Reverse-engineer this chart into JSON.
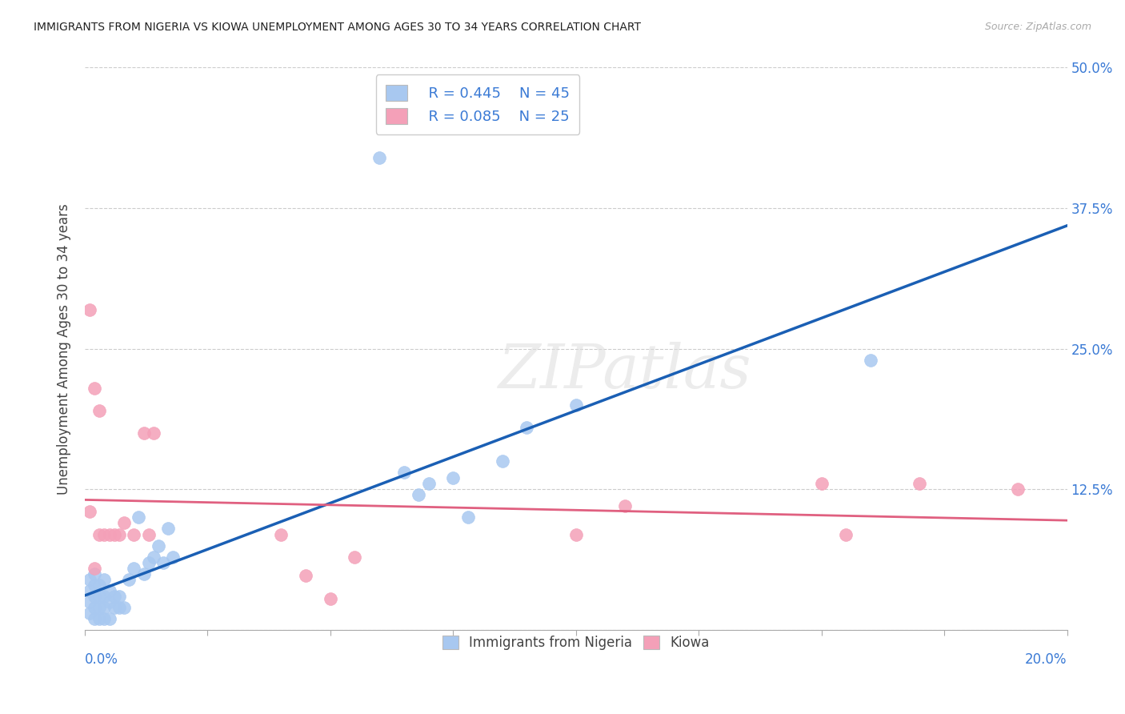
{
  "title": "IMMIGRANTS FROM NIGERIA VS KIOWA UNEMPLOYMENT AMONG AGES 30 TO 34 YEARS CORRELATION CHART",
  "source": "Source: ZipAtlas.com",
  "ylabel": "Unemployment Among Ages 30 to 34 years",
  "xlim": [
    0,
    0.2
  ],
  "ylim": [
    0,
    0.5
  ],
  "yticks": [
    0.0,
    0.125,
    0.25,
    0.375,
    0.5
  ],
  "ytick_labels": [
    "",
    "12.5%",
    "25.0%",
    "37.5%",
    "50.0%"
  ],
  "legend_r1": "R = 0.445",
  "legend_n1": "N = 45",
  "legend_r2": "R = 0.085",
  "legend_n2": "N = 25",
  "series1_label": "Immigrants from Nigeria",
  "series2_label": "Kiowa",
  "color1": "#a8c8f0",
  "color2": "#f4a0b8",
  "line_color1": "#1a5fb4",
  "line_color2": "#e06080",
  "axis_color": "#3a7ad5",
  "nigeria_x": [
    0.001,
    0.001,
    0.001,
    0.001,
    0.002,
    0.002,
    0.002,
    0.002,
    0.002,
    0.003,
    0.003,
    0.003,
    0.003,
    0.004,
    0.004,
    0.004,
    0.004,
    0.005,
    0.005,
    0.005,
    0.006,
    0.006,
    0.007,
    0.007,
    0.008,
    0.009,
    0.01,
    0.011,
    0.012,
    0.013,
    0.014,
    0.015,
    0.016,
    0.017,
    0.018,
    0.06,
    0.065,
    0.068,
    0.07,
    0.075,
    0.078,
    0.085,
    0.09,
    0.1,
    0.16
  ],
  "nigeria_y": [
    0.015,
    0.025,
    0.035,
    0.045,
    0.01,
    0.02,
    0.03,
    0.04,
    0.05,
    0.01,
    0.02,
    0.03,
    0.04,
    0.01,
    0.02,
    0.03,
    0.045,
    0.01,
    0.025,
    0.035,
    0.02,
    0.03,
    0.02,
    0.03,
    0.02,
    0.045,
    0.055,
    0.1,
    0.05,
    0.06,
    0.065,
    0.075,
    0.06,
    0.09,
    0.065,
    0.42,
    0.14,
    0.12,
    0.13,
    0.135,
    0.1,
    0.15,
    0.18,
    0.2,
    0.24
  ],
  "kiowa_x": [
    0.001,
    0.001,
    0.002,
    0.002,
    0.003,
    0.003,
    0.004,
    0.005,
    0.006,
    0.007,
    0.008,
    0.01,
    0.012,
    0.013,
    0.014,
    0.04,
    0.045,
    0.05,
    0.055,
    0.1,
    0.11,
    0.15,
    0.155,
    0.17,
    0.19
  ],
  "kiowa_y": [
    0.285,
    0.105,
    0.215,
    0.055,
    0.195,
    0.085,
    0.085,
    0.085,
    0.085,
    0.085,
    0.095,
    0.085,
    0.175,
    0.085,
    0.175,
    0.085,
    0.048,
    0.028,
    0.065,
    0.085,
    0.11,
    0.13,
    0.085,
    0.13,
    0.125
  ]
}
